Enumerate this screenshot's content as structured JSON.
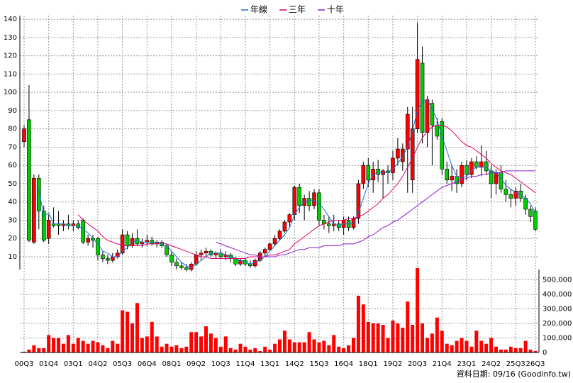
{
  "chart_data": [
    {
      "type": "candlestick",
      "categories": [
        "00Q3",
        null,
        null,
        null,
        null,
        "01Q4",
        null,
        null,
        null,
        null,
        "03Q1",
        null,
        null,
        null,
        null,
        "04Q2",
        null,
        null,
        null,
        null,
        "05Q3",
        null,
        null,
        null,
        null,
        "06Q4",
        null,
        null,
        null,
        null,
        "08Q1",
        null,
        null,
        null,
        null,
        "09Q2",
        null,
        null,
        null,
        null,
        "10Q3",
        null,
        null,
        null,
        null,
        "11Q4",
        null,
        null,
        null,
        null,
        "13Q1",
        null,
        null,
        null,
        null,
        "14Q2",
        null,
        null,
        null,
        null,
        "15Q3",
        null,
        null,
        null,
        null,
        "16Q4",
        null,
        null,
        null,
        null,
        "18Q1",
        null,
        null,
        null,
        null,
        "19Q2",
        null,
        null,
        null,
        null,
        "20Q3",
        null,
        null,
        null,
        null,
        "21Q4",
        null,
        null,
        null,
        null,
        "23Q1",
        null,
        null,
        null,
        null,
        "24Q2",
        null,
        null,
        null,
        null,
        "25Q3",
        null,
        null,
        null,
        "26Q3"
      ],
      "open": [
        73,
        85,
        18,
        53,
        35,
        20,
        28,
        28,
        27,
        28,
        27,
        28,
        30,
        18,
        20,
        20,
        11,
        9,
        8,
        10,
        12,
        22,
        16,
        20,
        17,
        18,
        19,
        17,
        18,
        16,
        11,
        7,
        5,
        4,
        3,
        6,
        11,
        12,
        13,
        11,
        12,
        10,
        11,
        9,
        6,
        8,
        6,
        5,
        8,
        12,
        14,
        17,
        20,
        24,
        29,
        33,
        48,
        38,
        42,
        38,
        45,
        30,
        28,
        27,
        28,
        26,
        30,
        26,
        31,
        50,
        60,
        52,
        58,
        55,
        57,
        56,
        64,
        62,
        69,
        52,
        80,
        116,
        78,
        94,
        82,
        84,
        58,
        52,
        54,
        50,
        60,
        55,
        62,
        59,
        62,
        57,
        50,
        56,
        47,
        44,
        42,
        46,
        42,
        36,
        35
      ],
      "high": [
        82,
        104,
        55,
        55,
        38,
        33,
        37,
        35,
        30,
        33,
        30,
        30,
        31,
        22,
        22,
        21,
        13,
        11,
        12,
        14,
        25,
        24,
        23,
        25,
        20,
        22,
        21,
        19,
        19,
        17,
        13,
        9,
        7,
        6,
        7,
        13,
        14,
        15,
        14,
        13,
        14,
        13,
        12,
        10,
        9,
        9,
        8,
        9,
        13,
        15,
        18,
        22,
        25,
        30,
        34,
        49,
        50,
        44,
        46,
        47,
        47,
        33,
        32,
        33,
        30,
        32,
        32,
        32,
        52,
        62,
        64,
        62,
        63,
        58,
        60,
        68,
        75,
        72,
        92,
        92,
        138,
        125,
        98,
        96,
        86,
        86,
        62,
        60,
        58,
        62,
        63,
        64,
        65,
        71,
        68,
        60,
        58,
        60,
        52,
        47,
        48,
        50,
        44,
        38,
        37
      ],
      "low": [
        70,
        18,
        17,
        25,
        18,
        17,
        26,
        22,
        24,
        25,
        24,
        25,
        17,
        16,
        15,
        8,
        7,
        6,
        7,
        9,
        11,
        14,
        15,
        16,
        15,
        16,
        16,
        15,
        15,
        10,
        5,
        3,
        3,
        2,
        2,
        5,
        8,
        10,
        10,
        9,
        9,
        8,
        7,
        5,
        5,
        5,
        4,
        4,
        7,
        10,
        13,
        16,
        19,
        23,
        26,
        30,
        34,
        30,
        35,
        36,
        27,
        25,
        23,
        24,
        24,
        22,
        24,
        25,
        28,
        47,
        48,
        45,
        51,
        42,
        50,
        52,
        60,
        57,
        45,
        45,
        78,
        72,
        70,
        60,
        74,
        55,
        50,
        46,
        45,
        48,
        52,
        53,
        58,
        54,
        55,
        42,
        44,
        45,
        40,
        37,
        38,
        40,
        33,
        29,
        24
      ],
      "close": [
        80,
        19,
        53,
        35,
        19,
        30,
        27,
        27,
        28,
        27,
        28,
        26,
        18,
        20,
        19,
        11,
        9,
        8,
        10,
        12,
        22,
        16,
        20,
        17,
        18,
        19,
        17,
        18,
        16,
        11,
        7,
        5,
        4,
        3,
        6,
        11,
        12,
        13,
        11,
        12,
        10,
        11,
        9,
        6,
        8,
        6,
        5,
        8,
        12,
        14,
        17,
        20,
        24,
        29,
        33,
        48,
        38,
        42,
        38,
        45,
        30,
        28,
        27,
        28,
        26,
        30,
        26,
        31,
        50,
        60,
        52,
        58,
        55,
        57,
        56,
        64,
        69,
        69,
        88,
        80,
        118,
        78,
        96,
        82,
        76,
        58,
        52,
        54,
        50,
        60,
        55,
        62,
        59,
        62,
        57,
        50,
        56,
        47,
        44,
        42,
        46,
        42,
        36,
        32,
        25
      ],
      "up_color": "#ff0000",
      "down_color": "#00cc00",
      "series": [
        {
          "name": "年線",
          "color": "#1a6fd6",
          "values": [
            null,
            null,
            null,
            47,
            32,
            34,
            28,
            28,
            28,
            27,
            27,
            27,
            25,
            23,
            20,
            17,
            13,
            12,
            10,
            10,
            13,
            15,
            18,
            19,
            18,
            18,
            18,
            18,
            17,
            16,
            13,
            10,
            7,
            5,
            4,
            6,
            8,
            10,
            12,
            12,
            12,
            11,
            10,
            9,
            8,
            7,
            6,
            7,
            8,
            10,
            13,
            16,
            19,
            22,
            26,
            33,
            37,
            40,
            41,
            41,
            39,
            36,
            32,
            28,
            27,
            28,
            28,
            28,
            34,
            42,
            50,
            55,
            56,
            56,
            56,
            58,
            61,
            65,
            70,
            79,
            90,
            95,
            96,
            91,
            85,
            76,
            68,
            60,
            54,
            53,
            54,
            57,
            59,
            59,
            59,
            57,
            56,
            53,
            49,
            47,
            45,
            44,
            42,
            39,
            34
          ]
        },
        {
          "name": "三年",
          "color": "#e0006a",
          "values": [
            null,
            null,
            null,
            null,
            null,
            null,
            null,
            null,
            null,
            null,
            null,
            33,
            30,
            28,
            26,
            24,
            21,
            19,
            18,
            17,
            16,
            16,
            16,
            16,
            16,
            17,
            17,
            17,
            18,
            17,
            16,
            15,
            14,
            13,
            12,
            11,
            10,
            10,
            9,
            9,
            9,
            9,
            9,
            9,
            9,
            9,
            10,
            10,
            10,
            10,
            11,
            11,
            12,
            13,
            14,
            17,
            19,
            21,
            23,
            25,
            27,
            28,
            29,
            30,
            30,
            30,
            31,
            31,
            32,
            33,
            35,
            37,
            39,
            42,
            44,
            47,
            50,
            54,
            59,
            64,
            70,
            75,
            79,
            81,
            82,
            82,
            81,
            79,
            76,
            73,
            71,
            70,
            68,
            66,
            64,
            61,
            59,
            57,
            56,
            55,
            53,
            51,
            49,
            47,
            45
          ]
        },
        {
          "name": "十年",
          "color": "#8a1ccf",
          "values": [
            null,
            null,
            null,
            null,
            null,
            null,
            null,
            null,
            null,
            null,
            null,
            null,
            null,
            null,
            null,
            null,
            null,
            null,
            null,
            null,
            null,
            null,
            null,
            null,
            null,
            null,
            null,
            null,
            null,
            null,
            null,
            null,
            null,
            null,
            null,
            null,
            null,
            null,
            null,
            18,
            17,
            16,
            15,
            14,
            13,
            12,
            11,
            11,
            10,
            10,
            10,
            10,
            11,
            11,
            12,
            13,
            14,
            14,
            15,
            15,
            15,
            16,
            16,
            16,
            16,
            17,
            17,
            17,
            18,
            19,
            21,
            22,
            24,
            26,
            27,
            29,
            30,
            32,
            34,
            36,
            38,
            40,
            42,
            44,
            46,
            48,
            49,
            50,
            51,
            52,
            53,
            54,
            54,
            55,
            55,
            56,
            56,
            56,
            57,
            57,
            57,
            57,
            57,
            57,
            57
          ]
        }
      ],
      "ylim": [
        3,
        142
      ],
      "yticks": [
        10,
        20,
        30,
        40,
        50,
        60,
        70,
        80,
        90,
        100,
        110,
        120,
        130,
        140
      ],
      "grid": true
    },
    {
      "type": "bar",
      "values": [
        5000,
        20000,
        50000,
        30000,
        30000,
        120000,
        100000,
        100000,
        60000,
        120000,
        60000,
        100000,
        80000,
        60000,
        80000,
        70000,
        50000,
        30000,
        80000,
        60000,
        290000,
        280000,
        200000,
        340000,
        100000,
        110000,
        210000,
        110000,
        40000,
        60000,
        40000,
        50000,
        30000,
        40000,
        140000,
        140000,
        110000,
        180000,
        130000,
        100000,
        40000,
        110000,
        30000,
        20000,
        60000,
        40000,
        20000,
        30000,
        10000,
        40000,
        20000,
        60000,
        90000,
        150000,
        90000,
        70000,
        70000,
        70000,
        140000,
        90000,
        70000,
        80000,
        50000,
        120000,
        40000,
        30000,
        50000,
        100000,
        390000,
        330000,
        210000,
        200000,
        200000,
        190000,
        100000,
        220000,
        200000,
        170000,
        350000,
        190000,
        580000,
        200000,
        100000,
        130000,
        240000,
        150000,
        60000,
        50000,
        80000,
        100000,
        80000,
        40000,
        150000,
        80000,
        60000,
        100000,
        40000,
        20000,
        20000,
        40000,
        30000,
        30000,
        80000,
        20000,
        10000
      ],
      "color": "#ff0000",
      "ylim": [
        0,
        570000
      ],
      "yticks": [
        0,
        {
          "value": 100000,
          "label": "100,000"
        },
        {
          "value": 200000,
          "label": "200,000"
        },
        {
          "value": 300000,
          "label": "300,000"
        },
        {
          "value": 400000,
          "label": "400,000"
        },
        {
          "value": 500000,
          "label": "500,000"
        }
      ],
      "grid": true
    }
  ],
  "footer": "資料日期: 09/16 (Goodinfo.tw)"
}
